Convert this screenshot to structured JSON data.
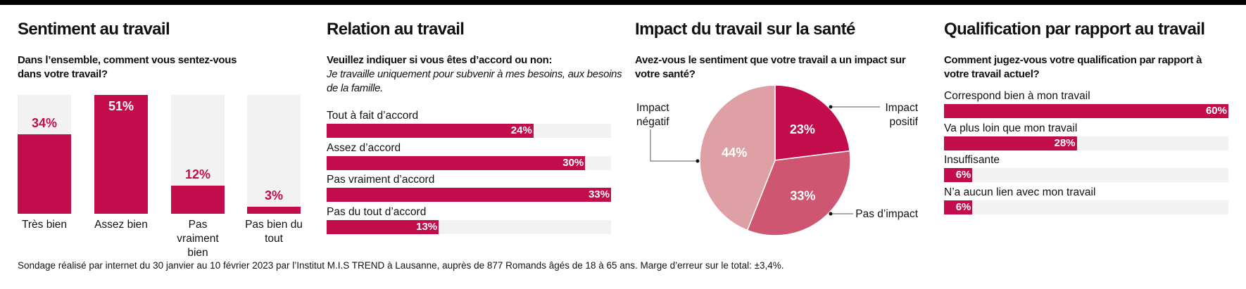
{
  "footnote": "Sondage réalisé par internet du 30 janvier au 10 février 2023 par l’Institut M.I.S TREND à Lausanne, auprès de 877 Romands âgés de 18 à 65 ans. Marge d’erreur sur le total: ±3,4%.",
  "colors": {
    "accent": "#c30c4b",
    "mid": "#cf5670",
    "light": "#dea0a4",
    "track": "#f2f2f2"
  },
  "chart_data": [
    {
      "type": "bar",
      "orientation": "vertical",
      "title": "Sentiment au travail",
      "subtitle": "Dans l’ensemble, comment vous sentez-vous dans votre travail?",
      "categories": [
        "Très bien",
        "Assez bien",
        "Pas vraiment bien",
        "Pas bien du tout"
      ],
      "values": [
        34,
        51,
        12,
        3
      ],
      "labels": [
        "34%",
        "51%",
        "12%",
        "3%"
      ],
      "unit": "%"
    },
    {
      "type": "bar",
      "orientation": "horizontal",
      "title": "Relation au travail",
      "subtitle": "Veuillez indiquer si vous êtes d’accord ou non:",
      "statement": "Je travaille uniquement pour subvenir à mes besoins, aux besoins de la famille.",
      "categories": [
        "Tout à fait d’accord",
        "Assez d’accord",
        "Pas vraiment d’accord",
        "Pas du tout d’accord"
      ],
      "values": [
        24,
        30,
        33,
        13
      ],
      "labels": [
        "24%",
        "30%",
        "33%",
        "13%"
      ],
      "unit": "%"
    },
    {
      "type": "pie",
      "title": "Impact du travail sur la santé",
      "subtitle": "Avez-vous le sentiment que votre travail a un impact sur votre santé?",
      "categories": [
        "Impact positif",
        "Pas d’impact",
        "Impact négatif"
      ],
      "values": [
        23,
        33,
        44
      ],
      "labels": [
        "23%",
        "33%",
        "44%"
      ],
      "colors": [
        "#c30c4b",
        "#cf5670",
        "#dea0a4"
      ]
    },
    {
      "type": "bar",
      "orientation": "horizontal",
      "title": "Qualification par rapport au travail",
      "subtitle": "Comment jugez-vous votre qualification par rapport à votre travail actuel?",
      "categories": [
        "Correspond bien à mon travail",
        "Va plus loin que mon travail",
        "Insuffisante",
        "N’a aucun lien avec mon travail"
      ],
      "values": [
        60,
        28,
        6,
        6
      ],
      "labels": [
        "60%",
        "28%",
        "6%",
        "6%"
      ],
      "unit": "%"
    }
  ]
}
